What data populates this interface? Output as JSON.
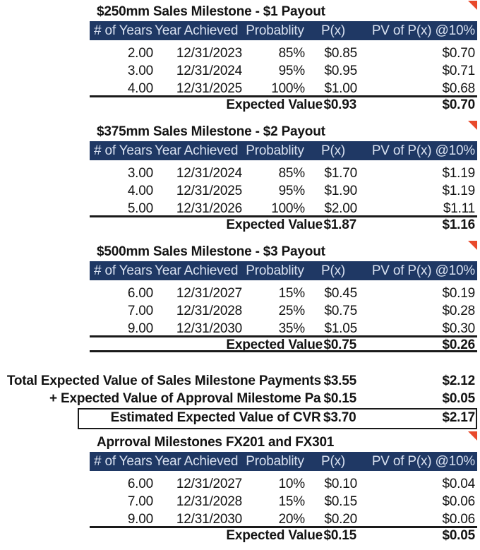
{
  "colors": {
    "page_bg": "#ffffff",
    "header_bg": "#1f3864",
    "header_text": "#d9e1f0",
    "text": "#131313",
    "line": "#1a1a1a",
    "flag": "#e8492b"
  },
  "columns": [
    "# of Years",
    "Year Achieved",
    "Probablity",
    "P(x)",
    "PV of P(x) @10%"
  ],
  "tables": [
    {
      "title": "$250mm Sales Milestone - $1 Payout",
      "rows": [
        [
          "2.00",
          "12/31/2023",
          "85%",
          "$0.85",
          "$0.70"
        ],
        [
          "3.00",
          "12/31/2024",
          "95%",
          "$0.95",
          "$0.71"
        ],
        [
          "4.00",
          "12/31/2025",
          "100%",
          "$1.00",
          "$0.68"
        ]
      ],
      "footer": {
        "label": "Expected Value",
        "px": "$0.93",
        "pv": "$0.70"
      }
    },
    {
      "title": "$375mm Sales Milestone - $2 Payout",
      "rows": [
        [
          "3.00",
          "12/31/2024",
          "85%",
          "$1.70",
          "$1.19"
        ],
        [
          "4.00",
          "12/31/2025",
          "95%",
          "$1.90",
          "$1.19"
        ],
        [
          "5.00",
          "12/31/2026",
          "100%",
          "$2.00",
          "$1.11"
        ]
      ],
      "footer": {
        "label": "Expected Value",
        "px": "$1.87",
        "pv": "$1.16"
      }
    },
    {
      "title": "$500mm Sales Milestone - $3 Payout",
      "rows": [
        [
          "6.00",
          "12/31/2027",
          "15%",
          "$0.45",
          "$0.19"
        ],
        [
          "7.00",
          "12/31/2028",
          "25%",
          "$0.75",
          "$0.28"
        ],
        [
          "9.00",
          "12/31/2030",
          "35%",
          "$1.05",
          "$0.30"
        ]
      ],
      "footer": {
        "label": "Expected Value",
        "px": "$0.75",
        "pv": "$0.26"
      }
    },
    {
      "title": "Aprroval Milestones FX201 and FX301",
      "rows": [
        [
          "6.00",
          "12/31/2027",
          "10%",
          "$0.10",
          "$0.04"
        ],
        [
          "7.00",
          "12/31/2028",
          "15%",
          "$0.15",
          "$0.06"
        ],
        [
          "9.00",
          "12/31/2030",
          "20%",
          "$0.20",
          "$0.06"
        ]
      ],
      "footer": {
        "label": "Expected Value",
        "px": "$0.15",
        "pv": "$0.05"
      }
    }
  ],
  "summary": {
    "total": {
      "label": "Total Expected Value of Sales Milestone Payments",
      "px": "$3.55",
      "pv": "$2.12"
    },
    "approval": {
      "label": "+ Expected Value of Approval Milestome Pa",
      "px": "$0.15",
      "pv": "$0.05"
    },
    "estimate": {
      "label": "Estimated Expected Value of CVR",
      "px": "$3.70",
      "pv": "$2.17"
    }
  }
}
